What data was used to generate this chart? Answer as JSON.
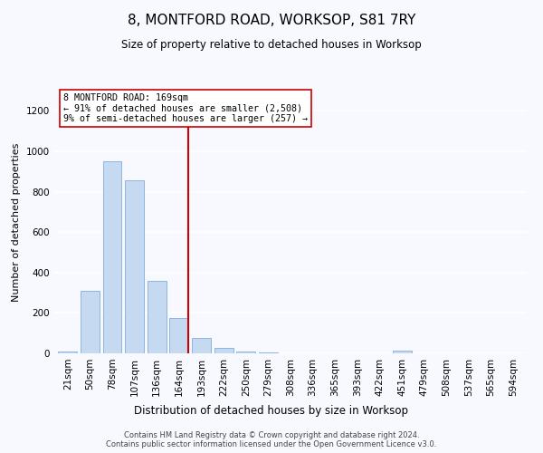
{
  "title": "8, MONTFORD ROAD, WORKSOP, S81 7RY",
  "subtitle": "Size of property relative to detached houses in Worksop",
  "xlabel": "Distribution of detached houses by size in Worksop",
  "ylabel": "Number of detached properties",
  "bar_labels": [
    "21sqm",
    "50sqm",
    "78sqm",
    "107sqm",
    "136sqm",
    "164sqm",
    "193sqm",
    "222sqm",
    "250sqm",
    "279sqm",
    "308sqm",
    "336sqm",
    "365sqm",
    "393sqm",
    "422sqm",
    "451sqm",
    "479sqm",
    "508sqm",
    "537sqm",
    "565sqm",
    "594sqm"
  ],
  "bar_values": [
    10,
    308,
    950,
    858,
    358,
    175,
    78,
    27,
    10,
    3,
    2,
    1,
    1,
    0,
    0,
    13,
    0,
    0,
    0,
    0,
    0
  ],
  "bar_color": "#c5d9f1",
  "bar_edge_color": "#8db4e2",
  "vline_x_index": 5,
  "vline_color": "#cc0000",
  "annotation_text": "8 MONTFORD ROAD: 169sqm\n← 91% of detached houses are smaller (2,508)\n9% of semi-detached houses are larger (257) →",
  "annotation_box_color": "#ffffff",
  "annotation_box_edge": "#cc0000",
  "ylim": [
    0,
    1300
  ],
  "yticks": [
    0,
    200,
    400,
    600,
    800,
    1000,
    1200
  ],
  "footer": "Contains HM Land Registry data © Crown copyright and database right 2024.\nContains public sector information licensed under the Open Government Licence v3.0.",
  "bg_color": "#f7f9ff",
  "grid_color": "#ffffff",
  "title_fontsize": 11,
  "subtitle_fontsize": 8.5,
  "ylabel_fontsize": 8,
  "xlabel_fontsize": 8.5,
  "tick_fontsize": 7.5,
  "footer_fontsize": 6.0
}
